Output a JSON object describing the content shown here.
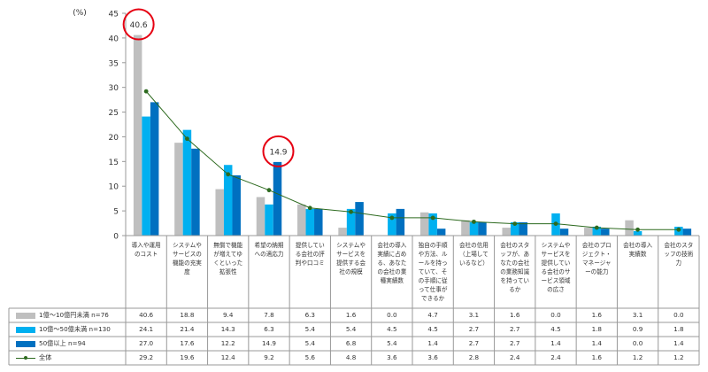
{
  "chart_data": {
    "type": "bar",
    "ylabel": "(%)",
    "ylim": [
      0,
      45
    ],
    "yticks": [
      0,
      5,
      10,
      15,
      20,
      25,
      30,
      35,
      40,
      45
    ],
    "categories": [
      "導入や運用のコスト",
      "システムやサービスの機能の充実度",
      "無償で機能が増えてゆくといった拡張性",
      "希望の納期への適応力",
      "提供している会社の評判や口コミ",
      "システムやサービスを提供する会社の規模",
      "会社の導入実績に占める、あなたの会社の業種実績数",
      "独自の手順や方法、ルールを持っていて、その手順に従って仕事ができるか",
      "会社の信用（上場しているなど）",
      "会社のスタッフが、あなたの会社の業務知識を持っているか",
      "システムやサービスを提供している会社のサービス領域の広さ",
      "会社のプロジェクト・マネージャーの能力",
      "会社の導入実績数",
      "会社のスタッフの技術力"
    ],
    "series": [
      {
        "name": "1億～10億円未満 n=76",
        "color": "#bfbfbf",
        "values": [
          40.6,
          18.8,
          9.4,
          7.8,
          6.3,
          1.6,
          0.0,
          4.7,
          3.1,
          1.6,
          0.0,
          1.6,
          3.1,
          0.0
        ]
      },
      {
        "name": "10億～50億未満 n=130",
        "color": "#00b0f0",
        "values": [
          24.1,
          21.4,
          14.3,
          6.3,
          5.4,
          5.4,
          4.5,
          4.5,
          2.7,
          2.7,
          4.5,
          1.8,
          0.9,
          1.8
        ]
      },
      {
        "name": "50億以上 n=94",
        "color": "#0070c0",
        "values": [
          27.0,
          17.6,
          12.2,
          14.9,
          5.4,
          6.8,
          5.4,
          1.4,
          2.7,
          2.7,
          1.4,
          1.4,
          0.0,
          1.4
        ]
      }
    ],
    "line_series": {
      "name": "全体",
      "color": "#2d6a1f",
      "values": [
        29.2,
        19.6,
        12.4,
        9.2,
        5.6,
        4.8,
        3.6,
        3.6,
        2.8,
        2.4,
        2.4,
        1.6,
        1.2,
        1.2
      ]
    },
    "annotations": [
      {
        "text": "40.6",
        "category_index": 0,
        "series_index": 0
      },
      {
        "text": "14.9",
        "category_index": 3,
        "series_index": 2
      }
    ]
  }
}
